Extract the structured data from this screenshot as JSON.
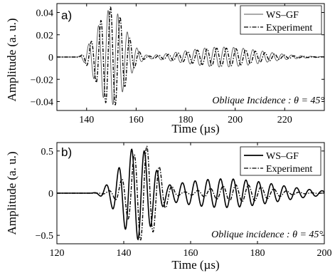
{
  "chart_data": [
    {
      "type": "line",
      "panel_label": "a)",
      "xlabel": "Time (µs)",
      "ylabel": "Amplitude (a. u.)",
      "xlim": [
        128,
        236
      ],
      "ylim": [
        -0.048,
        0.048
      ],
      "xticks": [
        140,
        160,
        180,
        200,
        220
      ],
      "yticks": [
        0.04,
        0.02,
        0,
        -0.02,
        -0.04
      ],
      "ytick_labels": [
        "0.04",
        "0.02",
        "0",
        "−0.02",
        "−0.04"
      ],
      "grid": false,
      "legend_position": "top-right",
      "annotation": "Oblique Incidence : θ = 45°",
      "series": [
        {
          "name": "WS–GF",
          "style": "solid-thin",
          "color": "#555555",
          "signal": {
            "start": 136,
            "carrier_period": 3.9,
            "env_peaks": [
              [
                150,
                0.043,
                8
              ],
              [
                195,
                0.009,
                22
              ]
            ]
          }
        },
        {
          "name": "Experiment",
          "style": "dashdot",
          "color": "#000000",
          "signal": {
            "start": 136,
            "carrier_period": 3.9,
            "phase_lag": 0.25,
            "env_peaks": [
              [
                150,
                0.045,
                7.5
              ],
              [
                195,
                0.008,
                20
              ]
            ]
          }
        }
      ]
    },
    {
      "type": "line",
      "panel_label": "b)",
      "xlabel": "Time (µs)",
      "ylabel": "Amplitude (a. u.)",
      "xlim": [
        120,
        200
      ],
      "ylim": [
        -0.6,
        0.6
      ],
      "xticks": [
        120,
        140,
        160,
        180,
        200
      ],
      "yticks": [
        0.5,
        0,
        -0.5
      ],
      "ytick_labels": [
        "0.5",
        "0",
        "−0.5"
      ],
      "grid": false,
      "legend_position": "top-right",
      "annotation": "Oblique incidence : θ = 45°",
      "series": [
        {
          "name": "WS–GF",
          "style": "solid-thick",
          "color": "#000000",
          "signal": {
            "start": 130,
            "carrier_period": 3.8,
            "env_peaks": [
              [
                144,
                0.55,
                7
              ],
              [
                170,
                0.17,
                22
              ]
            ]
          }
        },
        {
          "name": "Experiment",
          "style": "dashdot",
          "color": "#000000",
          "signal": {
            "start": 130,
            "carrier_period": 3.8,
            "phase_lag": 0.2,
            "env_peaks": [
              [
                146,
                0.57,
                6
              ],
              [
                175,
                0.1,
                12
              ]
            ]
          }
        }
      ]
    }
  ]
}
